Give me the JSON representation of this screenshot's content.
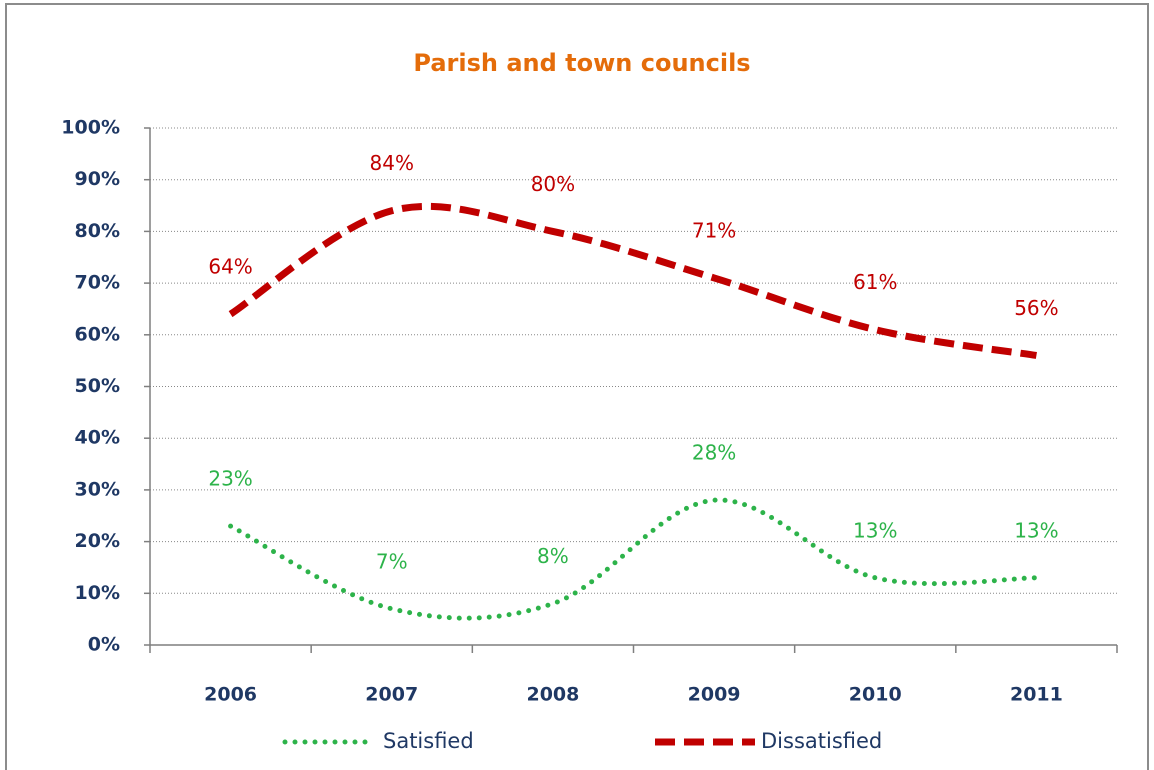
{
  "chart_data": {
    "type": "line",
    "title": "Parish and town councils",
    "categories": [
      "2006",
      "2007",
      "2008",
      "2009",
      "2010",
      "2011"
    ],
    "series": [
      {
        "name": "Satisfied",
        "color": "#2db34a",
        "style": "dotted",
        "values": [
          23,
          7,
          8,
          28,
          13,
          13
        ],
        "value_labels": [
          "23%",
          "7%",
          "8%",
          "28%",
          "13%",
          "13%"
        ]
      },
      {
        "name": "Dissatisfied",
        "color": "#c00000",
        "style": "dashed",
        "values": [
          64,
          84,
          80,
          71,
          61,
          56
        ],
        "value_labels": [
          "64%",
          "84%",
          "80%",
          "71%",
          "61%",
          "56%"
        ]
      }
    ],
    "ylim": [
      0,
      100
    ],
    "yticks": [
      {
        "value": 0,
        "label": "0%"
      },
      {
        "value": 10,
        "label": "10%"
      },
      {
        "value": 20,
        "label": "20%"
      },
      {
        "value": 30,
        "label": "30%"
      },
      {
        "value": 40,
        "label": "40%"
      },
      {
        "value": 50,
        "label": "50%"
      },
      {
        "value": 60,
        "label": "60%"
      },
      {
        "value": 70,
        "label": "70%"
      },
      {
        "value": 80,
        "label": "80%"
      },
      {
        "value": 90,
        "label": "90%"
      },
      {
        "value": 100,
        "label": "100%"
      }
    ],
    "grid": true,
    "legend": "bottom",
    "title_color": "#e46c0a"
  }
}
